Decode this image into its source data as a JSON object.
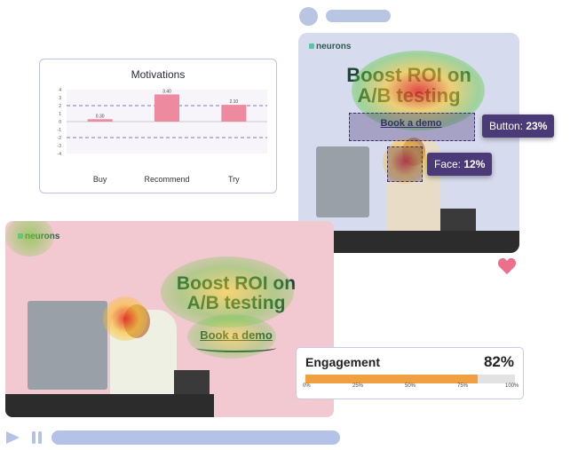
{
  "motivations": {
    "title": "Motivations",
    "chart_data": {
      "type": "bar",
      "categories": [
        "Buy",
        "Recommend",
        "Try"
      ],
      "values": [
        0.3,
        3.4,
        2.1
      ],
      "value_labels": [
        "0.30",
        "3.40",
        "2.10"
      ],
      "ylim": [
        -4,
        4
      ],
      "yticks": [
        "4",
        "3",
        "2",
        "1",
        "0",
        "-1",
        "-2",
        "-3",
        "-4"
      ],
      "reference_lines": [
        2,
        -2
      ],
      "bar_color": "#ee8aa0"
    }
  },
  "ad_top": {
    "brand": "neurons",
    "headline_line1": "Boost ROI on",
    "headline_line2": "A/B testing",
    "cta": "Book a demo",
    "tags": {
      "button": {
        "label": "Button:",
        "value": "23%"
      },
      "face": {
        "label": "Face:",
        "value": "12%"
      }
    }
  },
  "ad_bottom": {
    "brand": "neurons",
    "headline_line1": "Boost ROI on",
    "headline_line2": "A/B testing",
    "cta": "Book a demo"
  },
  "engagement": {
    "title": "Engagement",
    "value": "82%",
    "fraction": 0.82,
    "ticks": [
      "0%",
      "25%",
      "50%",
      "75%",
      "100%"
    ],
    "fill_color": "#f0a040"
  },
  "colors": {
    "accent": "#4a3a78",
    "heart": "#ee6f8c",
    "player": "#b3c2e6"
  }
}
